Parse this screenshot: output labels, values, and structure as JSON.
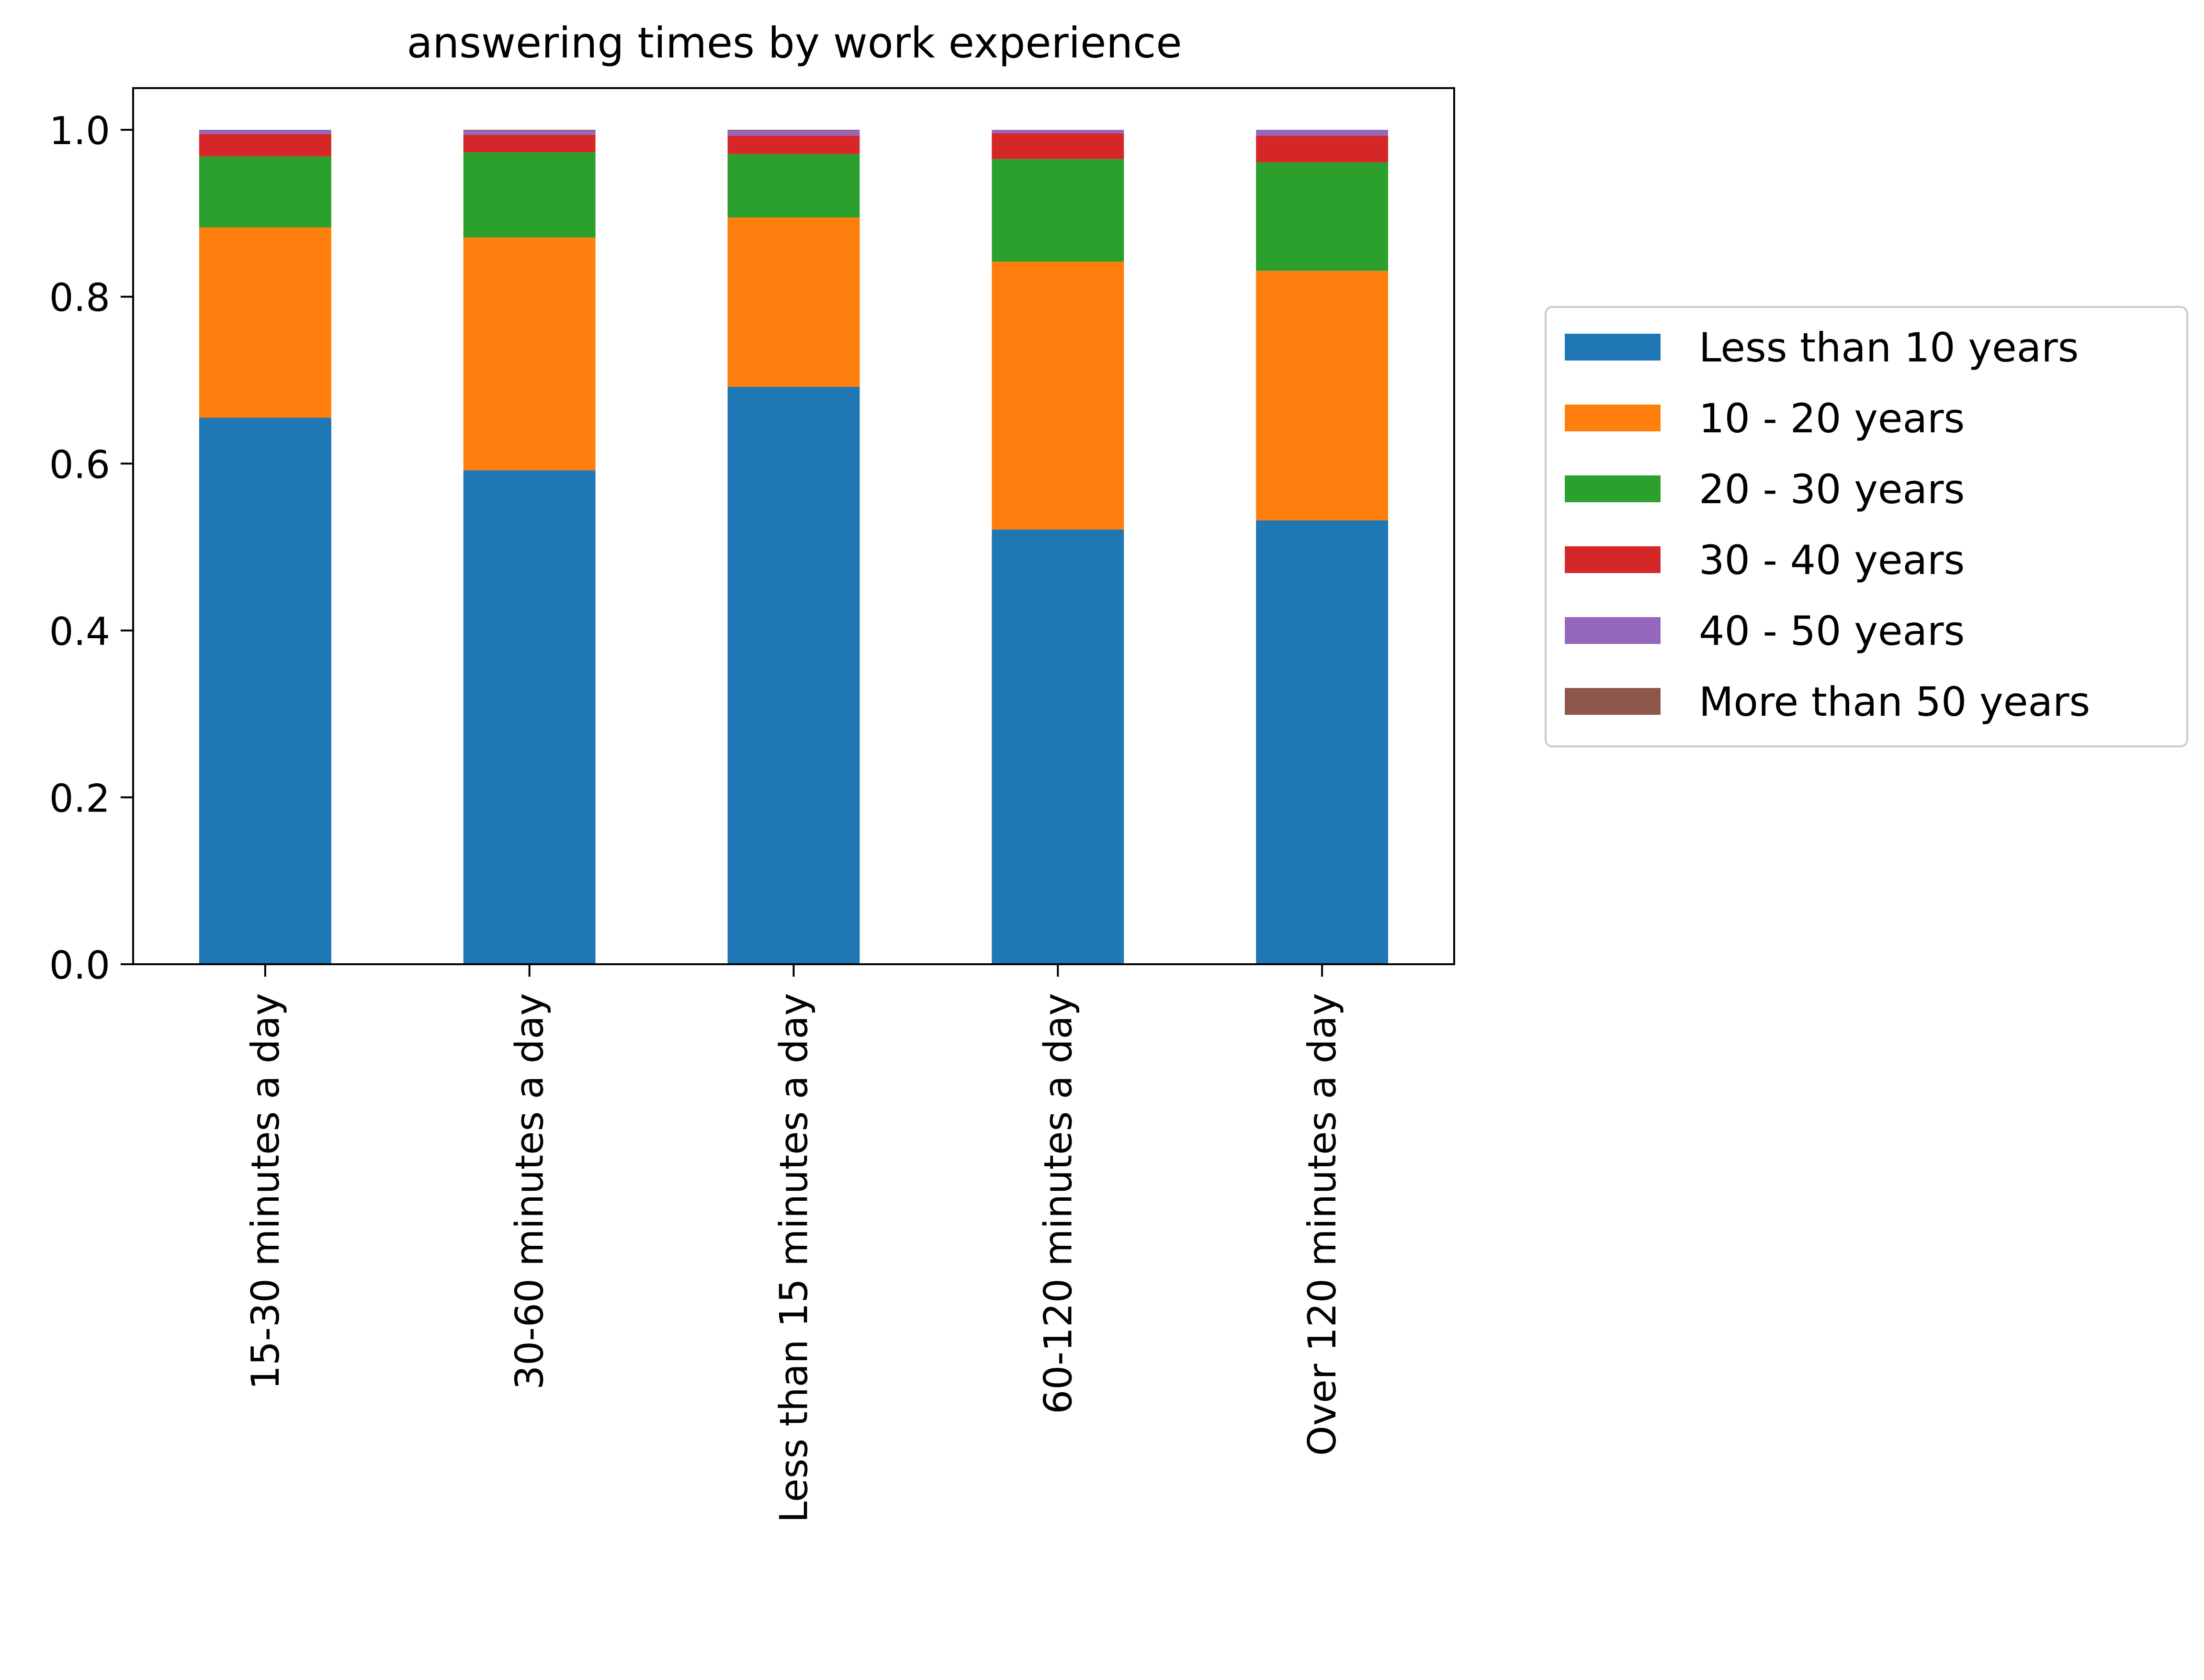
{
  "chart_data": {
    "type": "bar",
    "stacked": true,
    "title": "answering times by work experience",
    "xlabel": "",
    "ylabel": "",
    "categories": [
      "15-30 minutes a day",
      "30-60 minutes a day",
      "Less than 15 minutes a day",
      "60-120 minutes a day",
      "Over 120 minutes a day"
    ],
    "series": [
      {
        "name": "Less than 10 years",
        "color": "#1f77b4",
        "values": [
          0.655,
          0.592,
          0.692,
          0.521,
          0.532
        ]
      },
      {
        "name": "10 - 20 years",
        "color": "#ff7f0e",
        "values": [
          0.228,
          0.279,
          0.203,
          0.321,
          0.299
        ]
      },
      {
        "name": "20 - 30 years",
        "color": "#2ca02c",
        "values": [
          0.085,
          0.102,
          0.076,
          0.123,
          0.13
        ]
      },
      {
        "name": "30 - 40 years",
        "color": "#d62728",
        "values": [
          0.027,
          0.021,
          0.022,
          0.031,
          0.032
        ]
      },
      {
        "name": "40 - 50 years",
        "color": "#9467bd",
        "values": [
          0.005,
          0.005,
          0.006,
          0.004,
          0.007
        ]
      },
      {
        "name": "More than 50 years",
        "color": "#8c564b",
        "values": [
          0.0,
          0.001,
          0.001,
          0.0,
          0.0
        ]
      }
    ],
    "ylim": [
      0,
      1.05
    ],
    "yticks": [
      "0.0",
      "0.2",
      "0.4",
      "0.6",
      "0.8",
      "1.0"
    ],
    "grid": false,
    "legend_position": "right"
  }
}
